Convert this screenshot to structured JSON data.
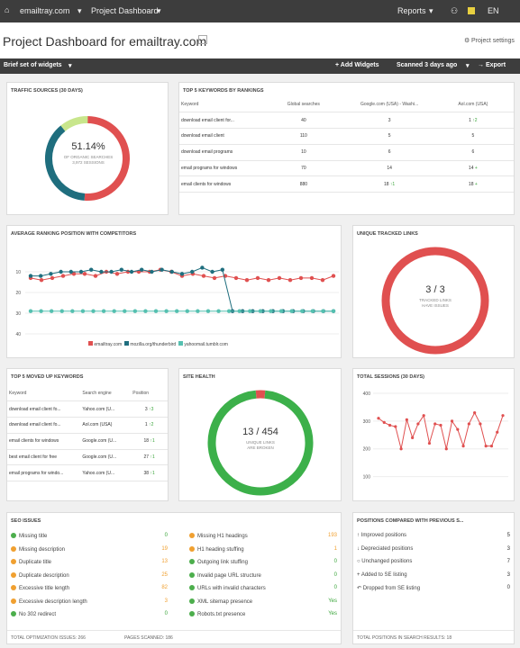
{
  "topbar": {
    "site": "emailtray.com",
    "project": "Project Dashboard",
    "reports": "Reports",
    "lang": "EN"
  },
  "header": {
    "title": "Project Dashboard for emailtray.com",
    "settings": "Project settings"
  },
  "toolbar": {
    "widget_set": "Brief set of widgets",
    "add": "+ Add Widgets",
    "scanned": "Scanned 3 days ago",
    "export": "→ Export"
  },
  "traffic": {
    "title": "TRAFFIC SOURCES (30 DAYS)",
    "percent": "51.14%",
    "label1": "OF ORGANIC SEARCHES",
    "label2": "3,972 SESSIONS",
    "colors": {
      "organic": "#e05050",
      "direct": "#1f6e7e",
      "other": "#c8e68c"
    },
    "fractions": [
      0.5114,
      0.38,
      0.11
    ]
  },
  "top_keywords": {
    "title": "TOP 5 KEYWORDS BY RANKINGS",
    "headers": [
      "Keyword",
      "Global searches",
      "Google.com (USA) - Washi...",
      "Aol.com (USA)"
    ],
    "rows": [
      [
        "download email client for...",
        "40",
        "3",
        "1 ↑2"
      ],
      [
        "download email client",
        "110",
        "5",
        "5"
      ],
      [
        "download email programs",
        "10",
        "6",
        "6"
      ],
      [
        "email programs for windows",
        "70",
        "14",
        "14 +"
      ],
      [
        "email clients for windows",
        "880",
        "18 ↑1",
        "18 +"
      ]
    ]
  },
  "avg_ranking": {
    "title": "AVERAGE RANKING POSITION WITH COMPETITORS",
    "legend": [
      "emailtray.com",
      "mozilla.org/thunderbird",
      "yahoomail.tumblr.com"
    ]
  },
  "chart_data": [
    {
      "type": "line",
      "title": "AVERAGE RANKING POSITION WITH COMPETITORS",
      "y_ticks": [
        "10",
        "20",
        "30",
        "40"
      ],
      "ylim": [
        40,
        0
      ],
      "series": [
        {
          "name": "emailtray.com",
          "color": "#e05050",
          "values": [
            13,
            14,
            13,
            12,
            11,
            11,
            12,
            10,
            11,
            10,
            10,
            10,
            9,
            10,
            12,
            11,
            12,
            13,
            12,
            13,
            14,
            13,
            14,
            13,
            14,
            13,
            13,
            14,
            12
          ]
        },
        {
          "name": "mozilla.org/thunderbird",
          "color": "#1f6e7e",
          "values": [
            12,
            12,
            11,
            10,
            10,
            10,
            9,
            10,
            10,
            9,
            10,
            9,
            10,
            9,
            10,
            11,
            10,
            8,
            10,
            9,
            29,
            29,
            29,
            29,
            29,
            29,
            29,
            29,
            29,
            29,
            29
          ]
        },
        {
          "name": "yahoomail.tumblr.com",
          "color": "#55c0b0",
          "values": [
            29,
            29,
            29,
            29,
            29,
            29,
            29,
            29,
            29,
            29,
            29,
            29,
            29,
            29,
            29,
            29,
            29,
            29,
            29,
            29,
            29,
            29,
            29,
            29,
            29,
            29,
            29,
            29,
            29,
            29
          ]
        }
      ]
    },
    {
      "type": "line",
      "title": "TOTAL SESSIONS (30 DAYS)",
      "y_ticks": [
        "400",
        "300",
        "200",
        "100"
      ],
      "ylim": [
        50,
        400
      ],
      "series": [
        {
          "name": "sessions",
          "color": "#e05050",
          "values": [
            310,
            295,
            285,
            280,
            200,
            305,
            240,
            290,
            320,
            220,
            290,
            285,
            200,
            300,
            270,
            210,
            290,
            330,
            290,
            210,
            210,
            260,
            320
          ]
        }
      ]
    }
  ],
  "unique_links": {
    "title": "UNIQUE TRACKED LINKS",
    "value": "3 / 3",
    "label1": "TRACKED LINKS",
    "label2": "HAVE ISSUES"
  },
  "moved_up": {
    "title": "TOP 5 MOVED UP KEYWORDS",
    "headers": [
      "Keyword",
      "Search engine",
      "Position"
    ],
    "rows": [
      [
        "download email client fo...",
        "Yahoo.com (U...",
        "3 ↑3"
      ],
      [
        "download email client fo...",
        "Aol.com (USA)",
        "1 ↑2"
      ],
      [
        "email clients for windows",
        "Google.com (U...",
        "18 ↑1"
      ],
      [
        "best email client for free",
        "Google.com (U...",
        "27 ↑1"
      ],
      [
        "email programs for windo...",
        "Yahoo.com (U...",
        "38 ↑1"
      ]
    ]
  },
  "site_health": {
    "title": "SITE HEALTH",
    "value": "13 / 454",
    "label1": "UNIQUE LINKS",
    "label2": "ARE BROKEN",
    "broken_fraction": 0.029
  },
  "sessions": {
    "title": "TOTAL SESSIONS (30 DAYS)"
  },
  "seo": {
    "title": "SEO ISSUES",
    "left": [
      [
        "ok",
        "Missing title",
        "0",
        "green"
      ],
      [
        "warn",
        "Missing description",
        "19",
        "orange"
      ],
      [
        "warn",
        "Duplicate title",
        "13",
        "orange"
      ],
      [
        "warn",
        "Duplicate description",
        "25",
        "orange"
      ],
      [
        "warn",
        "Excessive title length",
        "82",
        "orange"
      ],
      [
        "warn",
        "Excessive description length",
        "3",
        "orange"
      ],
      [
        "ok",
        "No 302 redirect",
        "0",
        "green"
      ]
    ],
    "right": [
      [
        "warn",
        "Missing H1 headings",
        "193",
        "orange"
      ],
      [
        "warn",
        "H1 heading stuffing",
        "1",
        "orange"
      ],
      [
        "ok",
        "Outgoing link stuffing",
        "0",
        "green"
      ],
      [
        "ok",
        "Invalid page URL structure",
        "0",
        "green"
      ],
      [
        "ok",
        "URLs with invalid characters",
        "0",
        "green"
      ],
      [
        "ok",
        "XML sitemap presence",
        "Yes",
        "green"
      ],
      [
        "ok",
        "Robots.txt presence",
        "Yes",
        "green"
      ]
    ],
    "footer1": "TOTAL OPTIMIZATION ISSUES: 266",
    "footer2": "PAGES SCANNED: 186"
  },
  "positions": {
    "title": "POSITIONS COMPARED WITH PREVIOUS S...",
    "items": [
      [
        "↑ Improved positions",
        "5"
      ],
      [
        "↓ Depreciated positions",
        "3"
      ],
      [
        "○ Unchanged positions",
        "7"
      ],
      [
        "+ Added to SE listing",
        "3"
      ],
      [
        "↶ Dropped from SE listing",
        "0"
      ]
    ],
    "footer": "TOTAL POSITIONS IN SEARCH RESULTS: 18"
  }
}
